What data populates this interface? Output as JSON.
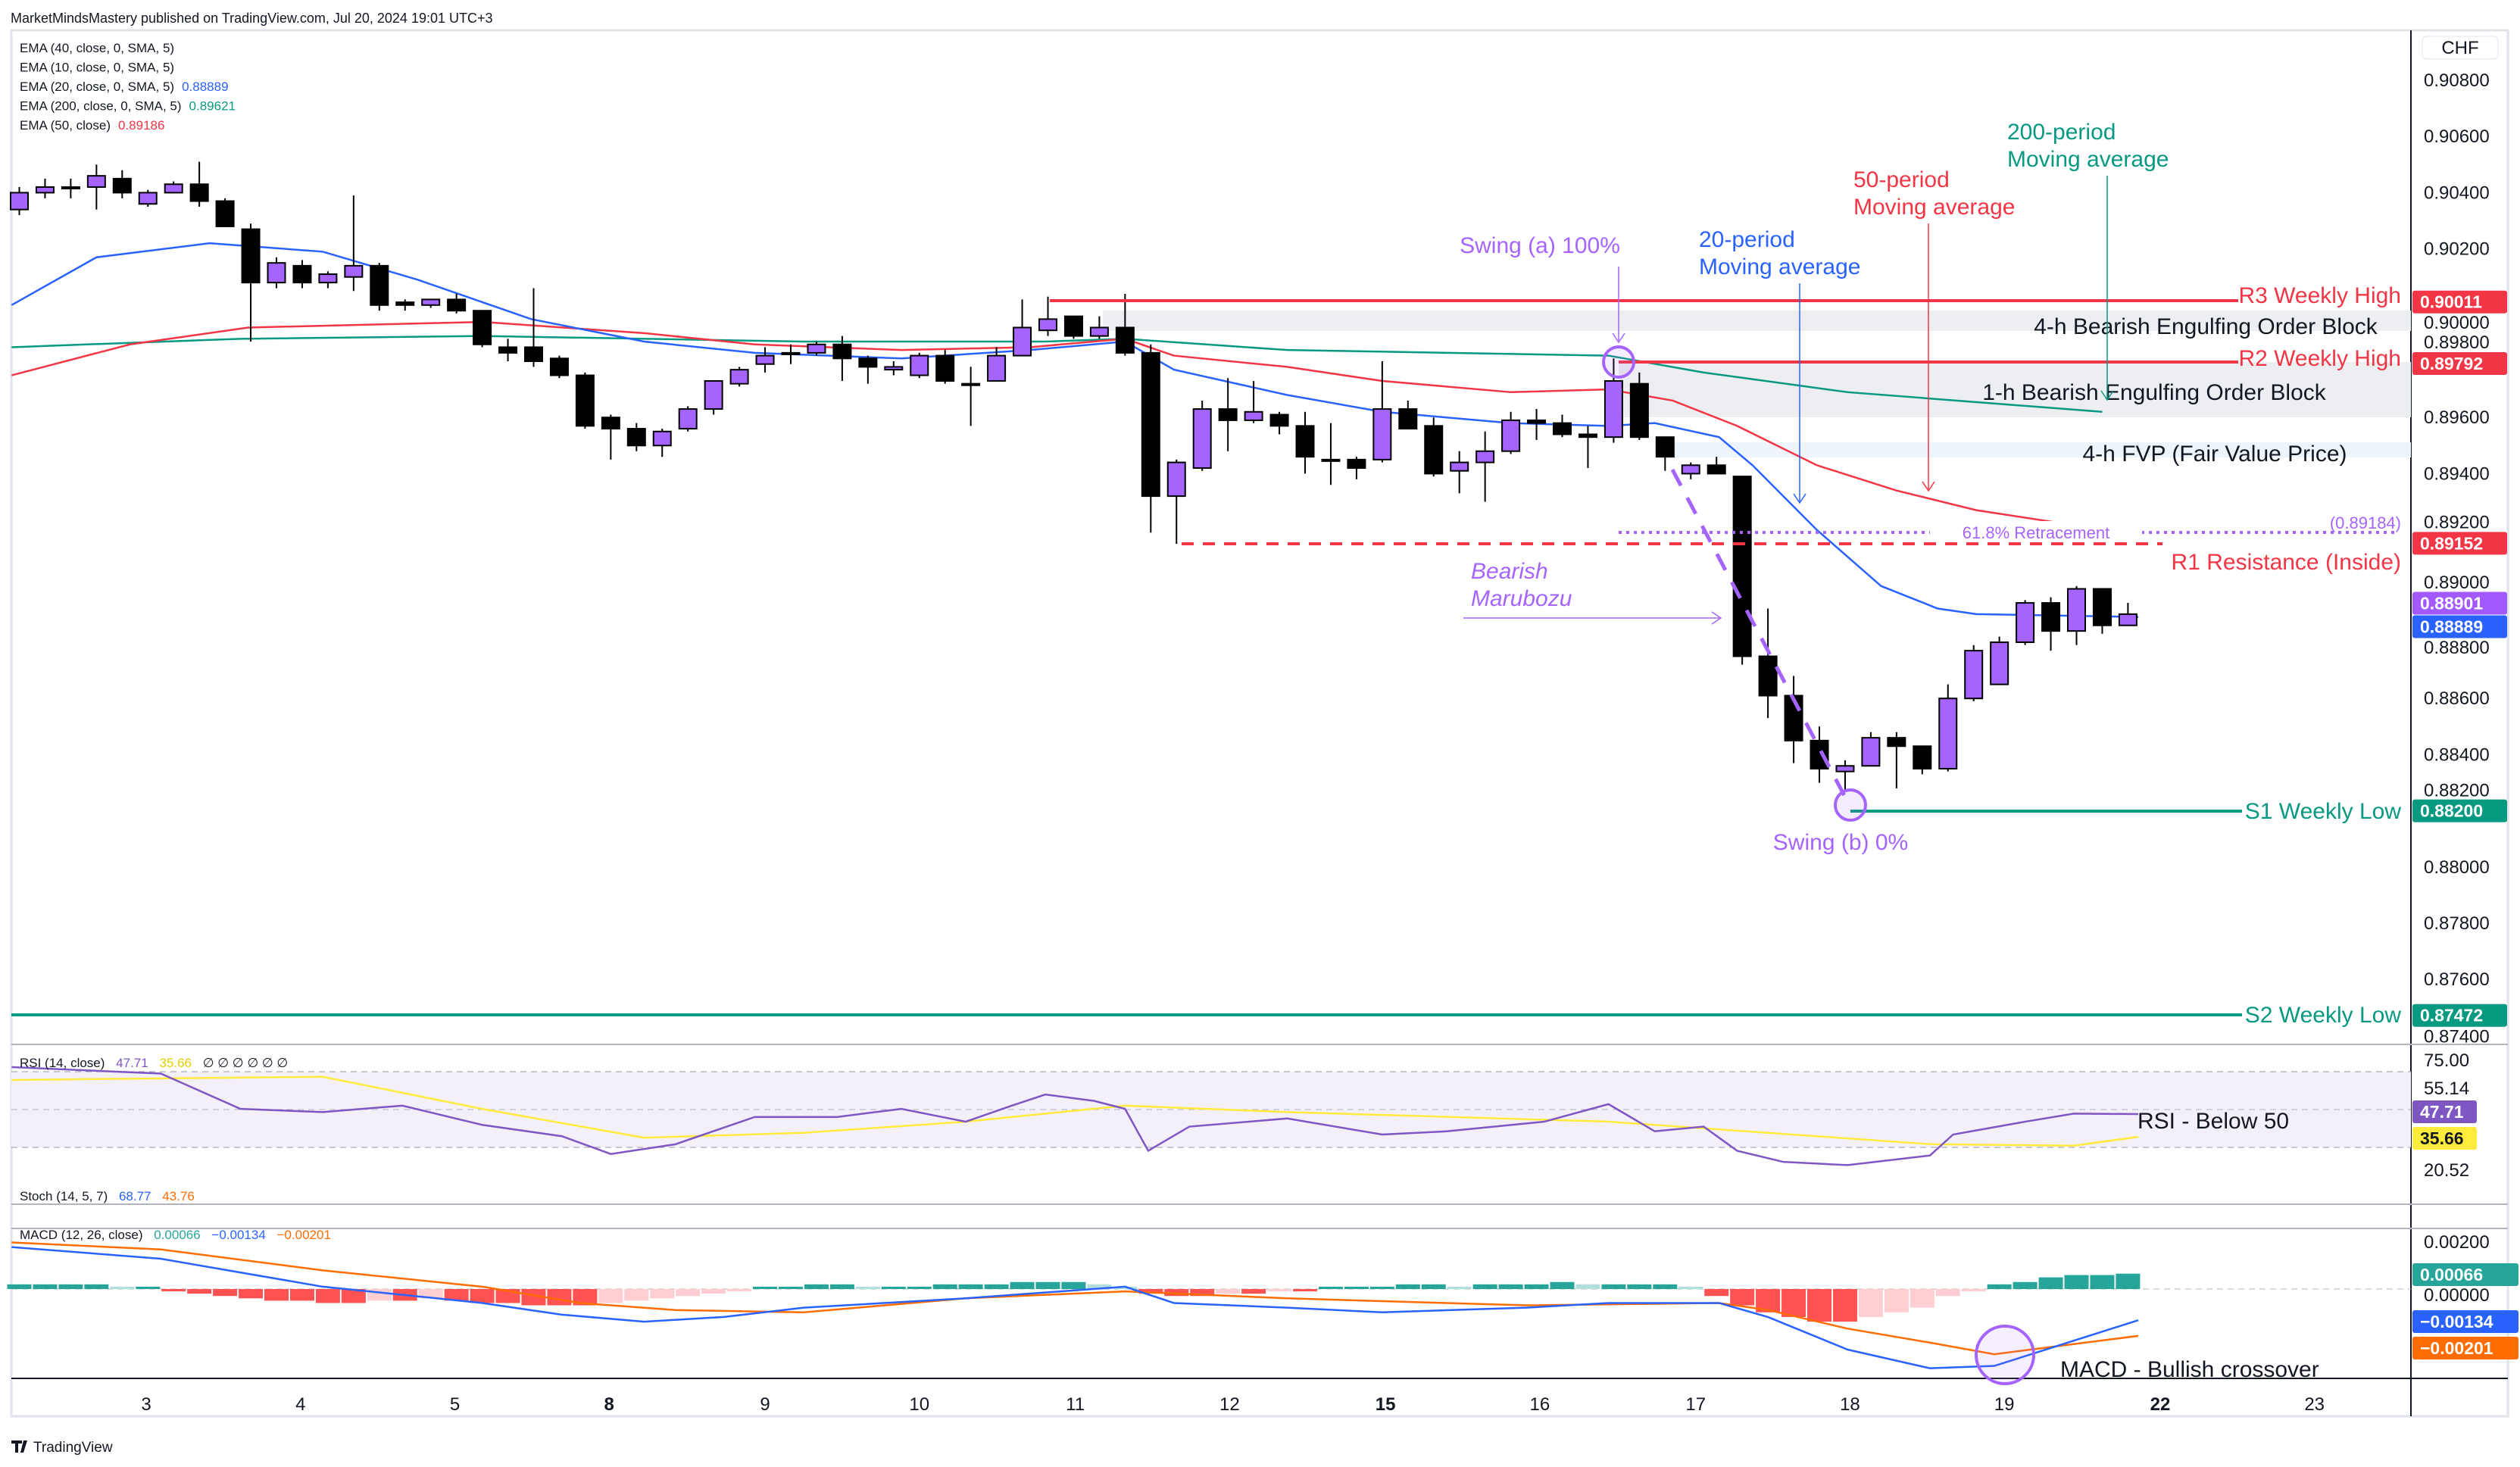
{
  "header": {
    "published": "MarketMindsMastery published on TradingView.com, Jul 20, 2024 19:01 UTC+3"
  },
  "legend": [
    {
      "label": "EMA (40, close, 0, SMA, 5)",
      "value": "",
      "color": "#131722"
    },
    {
      "label": "EMA (10, close, 0, SMA, 5)",
      "value": "",
      "color": "#131722"
    },
    {
      "label": "EMA (20, close, 0, SMA, 5)",
      "value": "0.88889",
      "color": "#2962ff"
    },
    {
      "label": "EMA (200, close, 0, SMA, 5)",
      "value": "0.89621",
      "color": "#089981"
    },
    {
      "label": "EMA (50, close)",
      "value": "0.89186",
      "color": "#f23645"
    }
  ],
  "rsi_legend": {
    "label": "RSI (14, close)",
    "v1": "47.71",
    "v2": "35.66",
    "rest": "∅ ∅ ∅ ∅ ∅ ∅"
  },
  "stoch_legend": {
    "label": "Stoch (14, 5, 7)",
    "v1": "68.77",
    "v2": "43.76"
  },
  "macd_legend": {
    "label": "MACD (12, 26, close)",
    "v1": "0.00066",
    "v2": "−0.00134",
    "v3": "−0.00201"
  },
  "price_axis": {
    "currency": "CHF",
    "labels": [
      "0.90800",
      "0.90600",
      "0.90400",
      "0.90200",
      "0.90000",
      "0.89800",
      "0.89600",
      "0.89400",
      "0.89200",
      "0.89000",
      "0.88800",
      "0.88600",
      "0.88400",
      "0.88200",
      "0.88000",
      "0.87800",
      "0.87600",
      "0.87400"
    ],
    "badges": [
      {
        "text": "0.90011",
        "price": 0.90011,
        "color": "#f23645"
      },
      {
        "text": "0.89792",
        "price": 0.89792,
        "color": "#f23645"
      },
      {
        "text": "0.89152",
        "price": 0.89152,
        "color": "#f23645"
      },
      {
        "text": "0.88901",
        "price": 0.88901,
        "color": "#a259ff"
      },
      {
        "text": "0.88889",
        "price": 0.88889,
        "color": "#2962ff"
      },
      {
        "text": "0.88200",
        "price": 0.882,
        "color": "#089981"
      },
      {
        "text": "0.87472",
        "price": 0.87472,
        "color": "#089981"
      }
    ]
  },
  "rsi_axis": {
    "labels": [
      "75.00",
      "55.14",
      "20.52"
    ],
    "badges": [
      {
        "text": "47.71",
        "value": 47.71,
        "color": "#7e57c2"
      },
      {
        "text": "35.66",
        "value": 35.66,
        "color": "#ffeb3b"
      }
    ]
  },
  "macd_axis": {
    "labels": [
      "0.00200",
      "0.00000"
    ],
    "badges": [
      {
        "text": "0.00066",
        "value": 0.00066,
        "color": "#26a69a"
      },
      {
        "text": "−0.00134",
        "value": -0.00134,
        "color": "#2962ff"
      },
      {
        "text": "−0.00201",
        "value": -0.00201,
        "color": "#ff6d00"
      }
    ]
  },
  "time_axis": [
    {
      "label": "3",
      "bold": false
    },
    {
      "label": "4",
      "bold": false
    },
    {
      "label": "5",
      "bold": false
    },
    {
      "label": "8",
      "bold": true
    },
    {
      "label": "9",
      "bold": false
    },
    {
      "label": "10",
      "bold": false
    },
    {
      "label": "11",
      "bold": false
    },
    {
      "label": "12",
      "bold": false
    },
    {
      "label": "15",
      "bold": true
    },
    {
      "label": "16",
      "bold": false
    },
    {
      "label": "17",
      "bold": false
    },
    {
      "label": "18",
      "bold": false
    },
    {
      "label": "19",
      "bold": false
    },
    {
      "label": "22",
      "bold": true
    },
    {
      "label": "23",
      "bold": false
    }
  ],
  "levels": {
    "r3": {
      "label": "R3 Weekly High",
      "price": 0.90011
    },
    "r2": {
      "label": "R2 Weekly High",
      "price": 0.89792
    },
    "r1": {
      "label": "R1 Resistance (Inside)",
      "price": 0.89152
    },
    "fib": {
      "label": "61.8% Retracement",
      "value_label": "(0.89184)",
      "price": 0.89184
    },
    "s1": {
      "label": "S1 Weekly Low",
      "price": 0.882
    },
    "s2": {
      "label": "S2 Weekly Low",
      "price": 0.87472
    }
  },
  "zones": {
    "ob4h": "4-h Bearish Engulfing Order Block",
    "ob1h": "1-h Bearish Engulfing Order Block",
    "fvp": "4-h FVP (Fair Value Price)"
  },
  "annotations": {
    "swing_a": "Swing (a) 100%",
    "swing_b": "Swing (b) 0%",
    "ma20_1": "20-period",
    "ma20_2": "Moving average",
    "ma50_1": "50-period",
    "ma50_2": "Moving average",
    "ma200_1": "200-period",
    "ma200_2": "Moving average",
    "maru_1": "Bearish",
    "maru_2": "Marubozu",
    "rsi_note": "RSI - Below 50",
    "macd_note": "MACD - Bullish crossover"
  },
  "footer": {
    "brand": "TradingView"
  },
  "colors": {
    "bull": "#a664ff",
    "bear": "#000000",
    "ema20": "#2962ff",
    "ema50": "#f23645",
    "ema200": "#089981",
    "rsi": "#7e57c2",
    "rsi_ma": "#ffeb3b",
    "macd": "#2962ff",
    "signal": "#ff6d00"
  },
  "chart_data": {
    "type": "candlestick",
    "symbol_currency": "CHF",
    "interval": "4h",
    "ylim": [
      0.8735,
      0.909
    ],
    "candles_ohlc": [
      [
        0.9034,
        0.9042,
        0.9032,
        0.904
      ],
      [
        0.904,
        0.9045,
        0.9038,
        0.9042
      ],
      [
        0.9042,
        0.9045,
        0.9038,
        0.9042
      ],
      [
        0.9042,
        0.905,
        0.9034,
        0.9046
      ],
      [
        0.9045,
        0.9048,
        0.9038,
        0.904
      ],
      [
        0.9036,
        0.9041,
        0.9035,
        0.904
      ],
      [
        0.904,
        0.9044,
        0.904,
        0.9043
      ],
      [
        0.9043,
        0.9051,
        0.9035,
        0.9037
      ],
      [
        0.9037,
        0.9038,
        0.9028,
        0.9028
      ],
      [
        0.9027,
        0.9029,
        0.8987,
        0.9008
      ],
      [
        0.9008,
        0.9017,
        0.9006,
        0.9015
      ],
      [
        0.9014,
        0.9016,
        0.9006,
        0.9008
      ],
      [
        0.9008,
        0.9012,
        0.9006,
        0.9011
      ],
      [
        0.901,
        0.9039,
        0.9005,
        0.9014
      ],
      [
        0.9014,
        0.9015,
        0.8998,
        0.9
      ],
      [
        0.9001,
        0.9002,
        0.8998,
        0.9
      ],
      [
        0.9,
        0.9002,
        0.8999,
        0.9002
      ],
      [
        0.9002,
        0.9004,
        0.8997,
        0.8998
      ],
      [
        0.8998,
        0.8998,
        0.8985,
        0.8986
      ],
      [
        0.8985,
        0.8988,
        0.898,
        0.8983
      ],
      [
        0.8985,
        0.9006,
        0.8978,
        0.898
      ],
      [
        0.8981,
        0.8982,
        0.8974,
        0.8975
      ],
      [
        0.8975,
        0.8976,
        0.8956,
        0.8957
      ],
      [
        0.896,
        0.8961,
        0.8945,
        0.8956
      ],
      [
        0.8956,
        0.8958,
        0.8948,
        0.895
      ],
      [
        0.895,
        0.8956,
        0.8946,
        0.8955
      ],
      [
        0.8956,
        0.8964,
        0.8955,
        0.8963
      ],
      [
        0.8963,
        0.8973,
        0.8961,
        0.8973
      ],
      [
        0.8972,
        0.8978,
        0.8971,
        0.8977
      ],
      [
        0.8979,
        0.8985,
        0.8976,
        0.8982
      ],
      [
        0.8983,
        0.8986,
        0.8979,
        0.8983
      ],
      [
        0.8983,
        0.8987,
        0.8982,
        0.8986
      ],
      [
        0.8986,
        0.8989,
        0.8973,
        0.8981
      ],
      [
        0.8981,
        0.8982,
        0.8972,
        0.8978
      ],
      [
        0.8977,
        0.898,
        0.8975,
        0.8978
      ],
      [
        0.8975,
        0.8983,
        0.8974,
        0.8982
      ],
      [
        0.8982,
        0.8984,
        0.8972,
        0.8973
      ],
      [
        0.8972,
        0.8978,
        0.8957,
        0.8972
      ],
      [
        0.8973,
        0.8985,
        0.8973,
        0.8982
      ],
      [
        0.8982,
        0.9002,
        0.8982,
        0.8992
      ],
      [
        0.8991,
        0.9003,
        0.8989,
        0.8995
      ],
      [
        0.8996,
        0.8996,
        0.8988,
        0.8989
      ],
      [
        0.8989,
        0.8996,
        0.8988,
        0.8992
      ],
      [
        0.8992,
        0.9004,
        0.8982,
        0.8983
      ],
      [
        0.8983,
        0.8986,
        0.8919,
        0.8932
      ],
      [
        0.8932,
        0.8945,
        0.8915,
        0.8944
      ],
      [
        0.8942,
        0.8966,
        0.8941,
        0.8963
      ],
      [
        0.8963,
        0.8974,
        0.8948,
        0.8959
      ],
      [
        0.8959,
        0.8973,
        0.8958,
        0.8962
      ],
      [
        0.8961,
        0.8962,
        0.8954,
        0.8957
      ],
      [
        0.8957,
        0.8962,
        0.894,
        0.8946
      ],
      [
        0.8945,
        0.8958,
        0.8936,
        0.8945
      ],
      [
        0.8945,
        0.8946,
        0.8938,
        0.8942
      ],
      [
        0.8945,
        0.898,
        0.8944,
        0.8963
      ],
      [
        0.8963,
        0.8966,
        0.8956,
        0.8956
      ],
      [
        0.8957,
        0.896,
        0.8939,
        0.894
      ],
      [
        0.8941,
        0.8948,
        0.8933,
        0.8944
      ],
      [
        0.8944,
        0.8955,
        0.893,
        0.8948
      ],
      [
        0.8948,
        0.8962,
        0.8947,
        0.8959
      ],
      [
        0.8959,
        0.8963,
        0.8952,
        0.8958
      ],
      [
        0.8958,
        0.8961,
        0.8953,
        0.8954
      ],
      [
        0.8954,
        0.8957,
        0.8942,
        0.8953
      ],
      [
        0.8953,
        0.8981,
        0.8951,
        0.8973
      ],
      [
        0.8972,
        0.8976,
        0.8952,
        0.8953
      ],
      [
        0.8953,
        0.8953,
        0.8941,
        0.8946
      ],
      [
        0.894,
        0.8944,
        0.8938,
        0.8943
      ],
      [
        0.8943,
        0.8946,
        0.894,
        0.894
      ],
      [
        0.8939,
        0.8939,
        0.8872,
        0.8875
      ],
      [
        0.8875,
        0.8892,
        0.8853,
        0.8861
      ],
      [
        0.8861,
        0.8868,
        0.8837,
        0.8845
      ],
      [
        0.8845,
        0.885,
        0.883,
        0.8835
      ],
      [
        0.8834,
        0.8838,
        0.8827,
        0.8836
      ],
      [
        0.8836,
        0.8848,
        0.8836,
        0.8846
      ],
      [
        0.8846,
        0.8848,
        0.8828,
        0.8843
      ],
      [
        0.8843,
        0.8843,
        0.8833,
        0.8835
      ],
      [
        0.8835,
        0.8865,
        0.8834,
        0.886
      ],
      [
        0.886,
        0.8879,
        0.8859,
        0.8877
      ],
      [
        0.8865,
        0.8882,
        0.8865,
        0.888
      ],
      [
        0.888,
        0.8895,
        0.8879,
        0.8894
      ],
      [
        0.8894,
        0.8896,
        0.8877,
        0.8884
      ],
      [
        0.8884,
        0.89,
        0.8879,
        0.8899
      ],
      [
        0.8899,
        0.8899,
        0.8883,
        0.8886
      ],
      [
        0.8886,
        0.8894,
        0.8886,
        0.889
      ]
    ],
    "ema20": [
      [
        -0.3,
        0.9
      ],
      [
        3,
        0.9017
      ],
      [
        7.4,
        0.9022
      ],
      [
        11.8,
        0.9019
      ],
      [
        15.5,
        0.9009
      ],
      [
        19.9,
        0.8995
      ],
      [
        24.3,
        0.8987
      ],
      [
        28.6,
        0.8983
      ],
      [
        34.3,
        0.8981
      ],
      [
        39.3,
        0.8984
      ],
      [
        43,
        0.8987
      ],
      [
        44.9,
        0.8977
      ],
      [
        49.3,
        0.8968
      ],
      [
        53,
        0.8962
      ],
      [
        55.5,
        0.896
      ],
      [
        58,
        0.8958
      ],
      [
        61.8,
        0.8957
      ],
      [
        63.6,
        0.8958
      ],
      [
        66.1,
        0.8953
      ],
      [
        67.4,
        0.8943
      ],
      [
        69.9,
        0.892
      ],
      [
        72.4,
        0.89
      ],
      [
        74.6,
        0.8892
      ],
      [
        76.1,
        0.889
      ],
      [
        82.4,
        0.8889
      ]
    ],
    "ema50": [
      [
        -0.3,
        0.8975
      ],
      [
        4.3,
        0.8986
      ],
      [
        8.9,
        0.8992
      ],
      [
        18,
        0.8994
      ],
      [
        24.3,
        0.899
      ],
      [
        28.6,
        0.8986
      ],
      [
        34.3,
        0.8984
      ],
      [
        39.3,
        0.8985
      ],
      [
        43,
        0.8988
      ],
      [
        44.9,
        0.8982
      ],
      [
        49.3,
        0.8978
      ],
      [
        53,
        0.8973
      ],
      [
        58,
        0.8969
      ],
      [
        61.8,
        0.897
      ],
      [
        64.3,
        0.8966
      ],
      [
        66.8,
        0.8957
      ],
      [
        69.9,
        0.8943
      ],
      [
        73,
        0.8934
      ],
      [
        76.1,
        0.8927
      ],
      [
        81.8,
        0.8919
      ]
    ],
    "ema200": [
      [
        -0.3,
        0.8985
      ],
      [
        8.6,
        0.8988
      ],
      [
        18,
        0.8989
      ],
      [
        30.5,
        0.8987
      ],
      [
        39.9,
        0.8987
      ],
      [
        43,
        0.8988
      ],
      [
        49.3,
        0.8984
      ],
      [
        61.8,
        0.8982
      ],
      [
        65.5,
        0.8976
      ],
      [
        71.1,
        0.8969
      ],
      [
        81,
        0.8962
      ]
    ],
    "rsi": [
      [
        -0.3,
        72.6
      ],
      [
        5.5,
        69.2
      ],
      [
        8.6,
        50.5
      ],
      [
        11.8,
        48.8
      ],
      [
        14.9,
        52.2
      ],
      [
        18,
        42
      ],
      [
        21.1,
        36
      ],
      [
        23,
        26.6
      ],
      [
        25.5,
        31.7
      ],
      [
        28.6,
        46.2
      ],
      [
        31.8,
        46.2
      ],
      [
        34.3,
        50.5
      ],
      [
        36.8,
        43.7
      ],
      [
        38.6,
        52.2
      ],
      [
        39.9,
        58.1
      ],
      [
        41.8,
        54.7
      ],
      [
        43,
        50.5
      ],
      [
        43.9,
        28.3
      ],
      [
        45.5,
        41.1
      ],
      [
        49.3,
        45.4
      ],
      [
        53,
        36.9
      ],
      [
        55.5,
        38.6
      ],
      [
        59.3,
        43.7
      ],
      [
        61.8,
        53
      ],
      [
        63.6,
        38.6
      ],
      [
        65.5,
        41.1
      ],
      [
        66.8,
        28.3
      ],
      [
        68.6,
        22.4
      ],
      [
        71.1,
        20.7
      ],
      [
        74.3,
        25.8
      ],
      [
        75.2,
        36.9
      ],
      [
        78,
        43.7
      ],
      [
        79.9,
        48
      ],
      [
        82.4,
        47.71
      ]
    ],
    "rsi_ma": [
      [
        -0.3,
        65.8
      ],
      [
        11.8,
        67.5
      ],
      [
        18,
        50.5
      ],
      [
        24.3,
        35.2
      ],
      [
        30.5,
        37.8
      ],
      [
        36.8,
        43.7
      ],
      [
        43,
        52.2
      ],
      [
        49.3,
        48.8
      ],
      [
        61.8,
        43.7
      ],
      [
        68,
        37.8
      ],
      [
        74.3,
        31.8
      ],
      [
        79.9,
        31
      ],
      [
        82.4,
        35.66
      ]
    ],
    "rsi_bands": [
      70,
      50,
      30
    ],
    "macd": [
      [
        -0.3,
        0.0018
      ],
      [
        5.5,
        0.0013
      ],
      [
        11.8,
        0.0001
      ],
      [
        18,
        -0.0006
      ],
      [
        21.1,
        -0.0011
      ],
      [
        24.3,
        -0.0014
      ],
      [
        27.4,
        -0.0012
      ],
      [
        30.5,
        -0.0008
      ],
      [
        36.8,
        -0.0004
      ],
      [
        43,
        0.0001
      ],
      [
        44.9,
        -0.0006
      ],
      [
        49.3,
        -0.0008
      ],
      [
        53,
        -0.001
      ],
      [
        58.6,
        -0.0008
      ],
      [
        61.8,
        -0.0006
      ],
      [
        66.1,
        -0.0006
      ],
      [
        68,
        -0.0012
      ],
      [
        71.1,
        -0.0026
      ],
      [
        74.3,
        -0.0034
      ],
      [
        76.8,
        -0.0033
      ],
      [
        82.4,
        -0.00134
      ]
    ],
    "signal": [
      [
        -0.3,
        0.002
      ],
      [
        5.5,
        0.0017
      ],
      [
        11.8,
        0.0008
      ],
      [
        18,
        0.0001
      ],
      [
        21.8,
        -0.0006
      ],
      [
        25.5,
        -0.0009
      ],
      [
        30.5,
        -0.001
      ],
      [
        36.8,
        -0.0004
      ],
      [
        43,
        -0.0001
      ],
      [
        49.3,
        -0.0004
      ],
      [
        58.6,
        -0.0007
      ],
      [
        66.1,
        -0.0006
      ],
      [
        68,
        -0.0009
      ],
      [
        71.1,
        -0.0017
      ],
      [
        74.3,
        -0.0023
      ],
      [
        76.8,
        -0.0028
      ],
      [
        82.4,
        -0.00201
      ]
    ],
    "histogram": [
      0.0002,
      0.0002,
      0.0002,
      0.0002,
      0.0001,
      0.0001,
      -0.0001,
      -0.0002,
      -0.0003,
      -0.0004,
      -0.0005,
      -0.0005,
      -0.0006,
      -0.0006,
      -0.0005,
      -0.0005,
      -0.0004,
      -0.0005,
      -0.0006,
      -0.0006,
      -0.0007,
      -0.0007,
      -0.0007,
      -0.0006,
      -0.0005,
      -0.0004,
      -0.0003,
      -0.0002,
      -0.0001,
      0.0001,
      0.0001,
      0.0002,
      0.0002,
      0.0001,
      0.0001,
      0.0001,
      0.0002,
      0.0002,
      0.0002,
      0.0003,
      0.0003,
      0.0003,
      0.0002,
      0.0001,
      -0.0002,
      -0.0003,
      -0.0003,
      -0.0002,
      -0.0002,
      -0.0001,
      -0.0001,
      0.0001,
      0.0001,
      0.0001,
      0.0002,
      0.0002,
      0.0001,
      0.0002,
      0.0002,
      0.0002,
      0.0003,
      0.0002,
      0.0002,
      0.0002,
      0.0002,
      0.0001,
      -0.0003,
      -0.0007,
      -0.001,
      -0.0012,
      -0.0014,
      -0.0014,
      -0.0012,
      -0.001,
      -0.0008,
      -0.0003,
      -0.0001,
      0.0002,
      0.0003,
      0.0005,
      0.0006,
      0.0006,
      0.00066
    ]
  }
}
